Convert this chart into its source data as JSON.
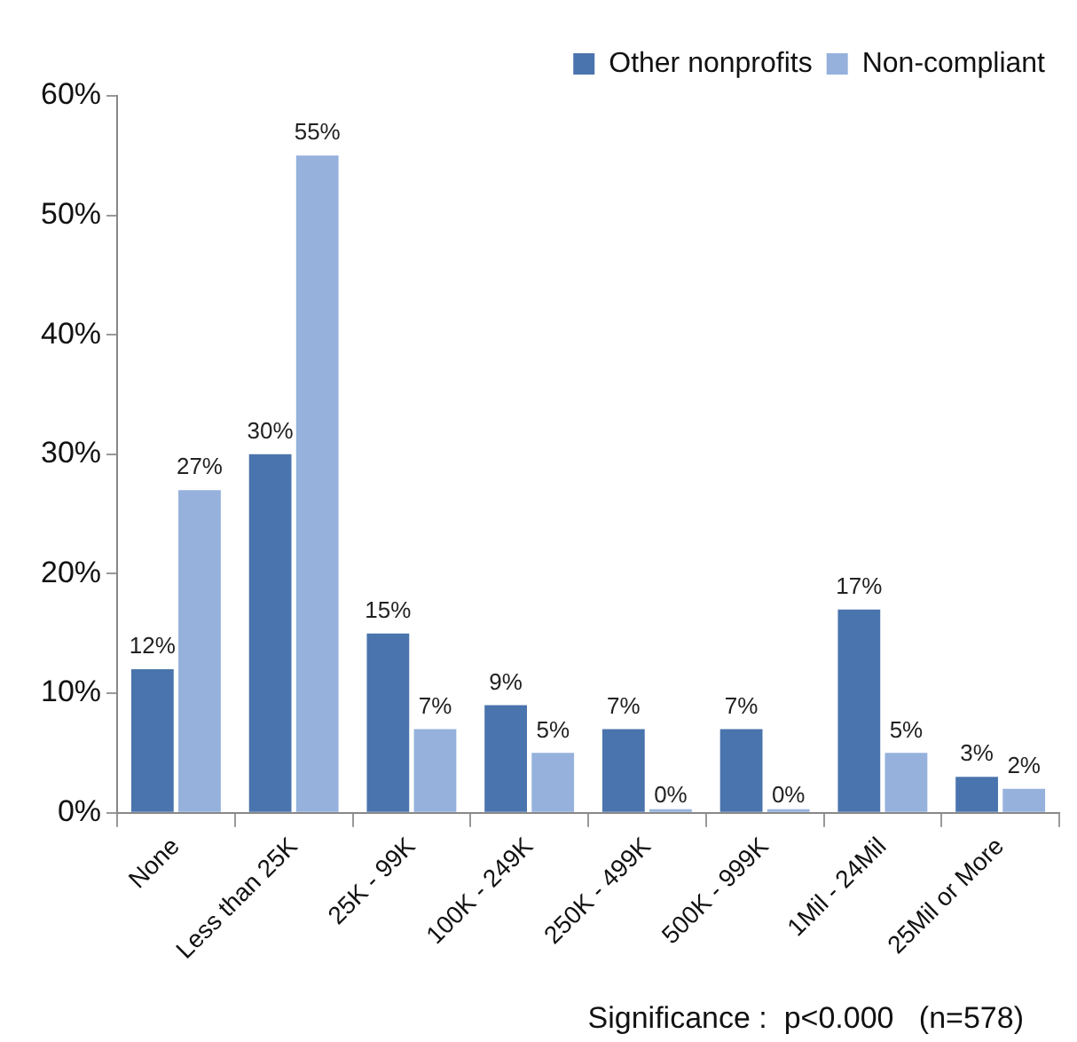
{
  "chart_data": {
    "type": "bar",
    "categories": [
      "None",
      "Less than 25K",
      "25K - 99K",
      "100K - 249K",
      "250K - 499K",
      "500K - 999K",
      "1Mil - 24Mil",
      "25Mil or More"
    ],
    "series": [
      {
        "name": "Other nonprofits",
        "color": "#4a74ad",
        "values": [
          12,
          30,
          15,
          9,
          7,
          7,
          17,
          3
        ],
        "value_labels": [
          "12%",
          "30%",
          "15%",
          "9%",
          "7%",
          "7%",
          "17%",
          "3%"
        ]
      },
      {
        "name": "Non-compliant",
        "color": "#95b1dc",
        "values": [
          27,
          55,
          7,
          5,
          0,
          0,
          5,
          2
        ],
        "value_labels": [
          "27%",
          "55%",
          "7%",
          "5%",
          "0%",
          "0%",
          "5%",
          "2%"
        ]
      }
    ],
    "ylim": [
      0,
      60
    ],
    "yticks": [
      {
        "value": 0,
        "label": "0%"
      },
      {
        "value": 10,
        "label": "10%"
      },
      {
        "value": 20,
        "label": "20%"
      },
      {
        "value": 30,
        "label": "30%"
      },
      {
        "value": 40,
        "label": "40%"
      },
      {
        "value": 50,
        "label": "50%"
      },
      {
        "value": 60,
        "label": "60%"
      }
    ],
    "grid": false,
    "legend": "top right",
    "annotations": [
      "Significance :  p<0.000   (n=578)"
    ]
  }
}
